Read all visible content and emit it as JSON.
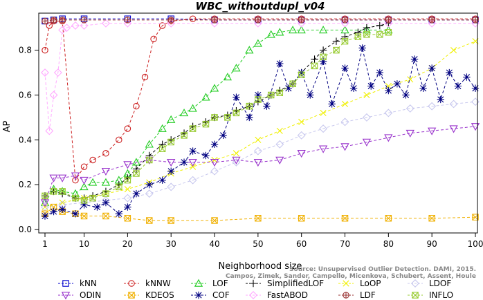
{
  "chart_data": {
    "type": "line",
    "title": "WBC_withoutdupl_v04",
    "xlabel": "Neighborhood size",
    "ylabel": "AP",
    "xlim": [
      0,
      100
    ],
    "ylim": [
      0,
      0.95
    ],
    "x_ticks": [
      1,
      10,
      20,
      30,
      40,
      50,
      60,
      70,
      80,
      90,
      100
    ],
    "y_ticks": [
      0.0,
      0.2,
      0.4,
      0.6,
      0.8
    ],
    "credit_line1": "Source: Unsupervised Outlier Detection. DAMI, 2015.",
    "credit_line2": "Campos, Zimek, Sander, Campello, Micenkova, Schubert, Assent, Houle",
    "series": [
      {
        "name": "kNN",
        "color": "#0000cc",
        "marker": "square",
        "x": [
          1,
          3,
          5,
          10,
          20,
          30,
          40,
          50,
          60,
          70,
          80,
          90,
          100
        ],
        "y": [
          0.93,
          0.935,
          0.94,
          0.94,
          0.94,
          0.94,
          0.935,
          0.935,
          0.935,
          0.935,
          0.935,
          0.935,
          0.935
        ]
      },
      {
        "name": "kNNW",
        "color": "#cc2020",
        "marker": "circle",
        "x": [
          1,
          2,
          3,
          5,
          8,
          10,
          12,
          15,
          18,
          20,
          22,
          24,
          26,
          28,
          30,
          35,
          40,
          50,
          60,
          70,
          80,
          90,
          100
        ],
        "y": [
          0.8,
          0.91,
          0.93,
          0.93,
          0.22,
          0.28,
          0.31,
          0.34,
          0.4,
          0.45,
          0.55,
          0.68,
          0.85,
          0.91,
          0.93,
          0.94,
          0.94,
          0.94,
          0.94,
          0.94,
          0.94,
          0.94,
          0.94
        ]
      },
      {
        "name": "LOF",
        "color": "#22cc22",
        "marker": "triangle",
        "x": [
          1,
          3,
          5,
          8,
          10,
          12,
          15,
          18,
          20,
          22,
          25,
          28,
          30,
          33,
          35,
          38,
          40,
          43,
          45,
          48,
          50,
          53,
          55,
          58,
          60,
          65,
          70,
          75,
          80
        ],
        "y": [
          0.12,
          0.18,
          0.17,
          0.16,
          0.19,
          0.21,
          0.21,
          0.22,
          0.25,
          0.3,
          0.38,
          0.45,
          0.49,
          0.52,
          0.54,
          0.59,
          0.63,
          0.68,
          0.72,
          0.8,
          0.83,
          0.87,
          0.88,
          0.89,
          0.89,
          0.89,
          0.89,
          0.89,
          0.89
        ]
      },
      {
        "name": "SimplifiedLOF",
        "color": "#000000",
        "marker": "plus",
        "x": [
          1,
          3,
          5,
          8,
          10,
          12,
          15,
          18,
          20,
          22,
          25,
          28,
          30,
          33,
          35,
          38,
          40,
          43,
          45,
          48,
          50,
          53,
          55,
          58,
          60,
          63,
          65,
          68,
          70,
          73,
          75,
          78,
          80
        ],
        "y": [
          0.15,
          0.17,
          0.16,
          0.14,
          0.14,
          0.15,
          0.17,
          0.2,
          0.23,
          0.27,
          0.33,
          0.38,
          0.4,
          0.43,
          0.46,
          0.48,
          0.5,
          0.51,
          0.53,
          0.55,
          0.57,
          0.6,
          0.62,
          0.65,
          0.7,
          0.76,
          0.8,
          0.84,
          0.86,
          0.88,
          0.9,
          0.91,
          0.92
        ]
      },
      {
        "name": "LoOP",
        "color": "#f0f000",
        "marker": "cross",
        "x": [
          1,
          5,
          10,
          15,
          20,
          25,
          30,
          35,
          40,
          45,
          50,
          55,
          60,
          65,
          70,
          75,
          80,
          85,
          90,
          95,
          100
        ],
        "y": [
          0.1,
          0.12,
          0.14,
          0.16,
          0.18,
          0.21,
          0.25,
          0.28,
          0.31,
          0.34,
          0.4,
          0.44,
          0.48,
          0.52,
          0.56,
          0.6,
          0.64,
          0.67,
          0.72,
          0.8,
          0.84
        ]
      },
      {
        "name": "LDOF",
        "color": "#c8c8ee",
        "marker": "diamond",
        "x": [
          1,
          5,
          10,
          15,
          20,
          25,
          30,
          35,
          40,
          45,
          50,
          55,
          60,
          65,
          70,
          75,
          80,
          85,
          90,
          95,
          100
        ],
        "y": [
          0.1,
          0.11,
          0.12,
          0.13,
          0.14,
          0.16,
          0.19,
          0.22,
          0.26,
          0.3,
          0.35,
          0.38,
          0.42,
          0.45,
          0.48,
          0.5,
          0.52,
          0.54,
          0.55,
          0.56,
          0.57
        ]
      },
      {
        "name": "ODIN",
        "color": "#9933cc",
        "marker": "invtriangle",
        "x": [
          1,
          3,
          5,
          8,
          10,
          15,
          20,
          25,
          30,
          35,
          40,
          45,
          50,
          55,
          60,
          65,
          70,
          75,
          80,
          85,
          90,
          95,
          100
        ],
        "y": [
          0.12,
          0.23,
          0.23,
          0.24,
          0.22,
          0.26,
          0.29,
          0.31,
          0.3,
          0.3,
          0.3,
          0.31,
          0.3,
          0.31,
          0.34,
          0.36,
          0.37,
          0.39,
          0.41,
          0.43,
          0.44,
          0.45,
          0.46
        ]
      },
      {
        "name": "KDEOS",
        "color": "#f0b000",
        "marker": "squarex",
        "x": [
          1,
          3,
          5,
          8,
          10,
          15,
          20,
          25,
          30,
          40,
          50,
          60,
          70,
          80,
          90,
          100
        ],
        "y": [
          0.07,
          0.1,
          0.08,
          0.07,
          0.06,
          0.06,
          0.05,
          0.04,
          0.04,
          0.04,
          0.05,
          0.05,
          0.05,
          0.05,
          0.05,
          0.055
        ]
      },
      {
        "name": "COF",
        "color": "#000080",
        "marker": "asterisk",
        "x": [
          1,
          3,
          5,
          8,
          10,
          13,
          15,
          18,
          20,
          22,
          25,
          28,
          30,
          33,
          35,
          38,
          40,
          42,
          45,
          48,
          50,
          52,
          55,
          57,
          60,
          62,
          65,
          67,
          70,
          72,
          74,
          76,
          78,
          80,
          82,
          84,
          86,
          88,
          90,
          92,
          94,
          96,
          98,
          100
        ],
        "y": [
          0.06,
          0.08,
          0.09,
          0.07,
          0.11,
          0.1,
          0.12,
          0.07,
          0.1,
          0.16,
          0.2,
          0.22,
          0.26,
          0.3,
          0.35,
          0.33,
          0.38,
          0.42,
          0.59,
          0.5,
          0.6,
          0.55,
          0.74,
          0.63,
          0.7,
          0.6,
          0.75,
          0.56,
          0.72,
          0.63,
          0.81,
          0.64,
          0.7,
          0.62,
          0.65,
          0.6,
          0.76,
          0.63,
          0.72,
          0.58,
          0.7,
          0.64,
          0.68,
          0.63
        ]
      },
      {
        "name": "FastABOD",
        "color": "#ffaaff",
        "marker": "diamond",
        "x": [
          1,
          2,
          3,
          4,
          5,
          6,
          8,
          10,
          15,
          20,
          30,
          40,
          50,
          60,
          70,
          80,
          90,
          100
        ],
        "y": [
          0.7,
          0.44,
          0.6,
          0.7,
          0.89,
          0.9,
          0.91,
          0.91,
          0.92,
          0.92,
          0.92,
          0.92,
          0.92,
          0.92,
          0.92,
          0.92,
          0.92,
          0.92
        ]
      },
      {
        "name": "LDF",
        "color": "#993333",
        "marker": "circleplus",
        "x": [
          1,
          3,
          5,
          10,
          20,
          30,
          40,
          50,
          60,
          70,
          80,
          90,
          100
        ],
        "y": [
          0.93,
          0.935,
          0.935,
          0.935,
          0.935,
          0.935,
          0.935,
          0.935,
          0.935,
          0.935,
          0.935,
          0.935,
          0.935
        ]
      },
      {
        "name": "INFLO",
        "color": "#99cc33",
        "marker": "hourglass",
        "x": [
          1,
          3,
          5,
          8,
          10,
          12,
          15,
          18,
          20,
          22,
          25,
          28,
          30,
          33,
          35,
          38,
          40,
          43,
          45,
          48,
          50,
          53,
          55,
          58,
          60,
          63,
          65,
          68,
          70,
          73,
          75,
          78,
          80
        ],
        "y": [
          0.15,
          0.17,
          0.17,
          0.14,
          0.13,
          0.14,
          0.16,
          0.19,
          0.22,
          0.25,
          0.31,
          0.36,
          0.39,
          0.42,
          0.45,
          0.47,
          0.5,
          0.5,
          0.52,
          0.55,
          0.58,
          0.6,
          0.61,
          0.65,
          0.69,
          0.73,
          0.77,
          0.8,
          0.84,
          0.86,
          0.87,
          0.87,
          0.88
        ]
      }
    ]
  }
}
